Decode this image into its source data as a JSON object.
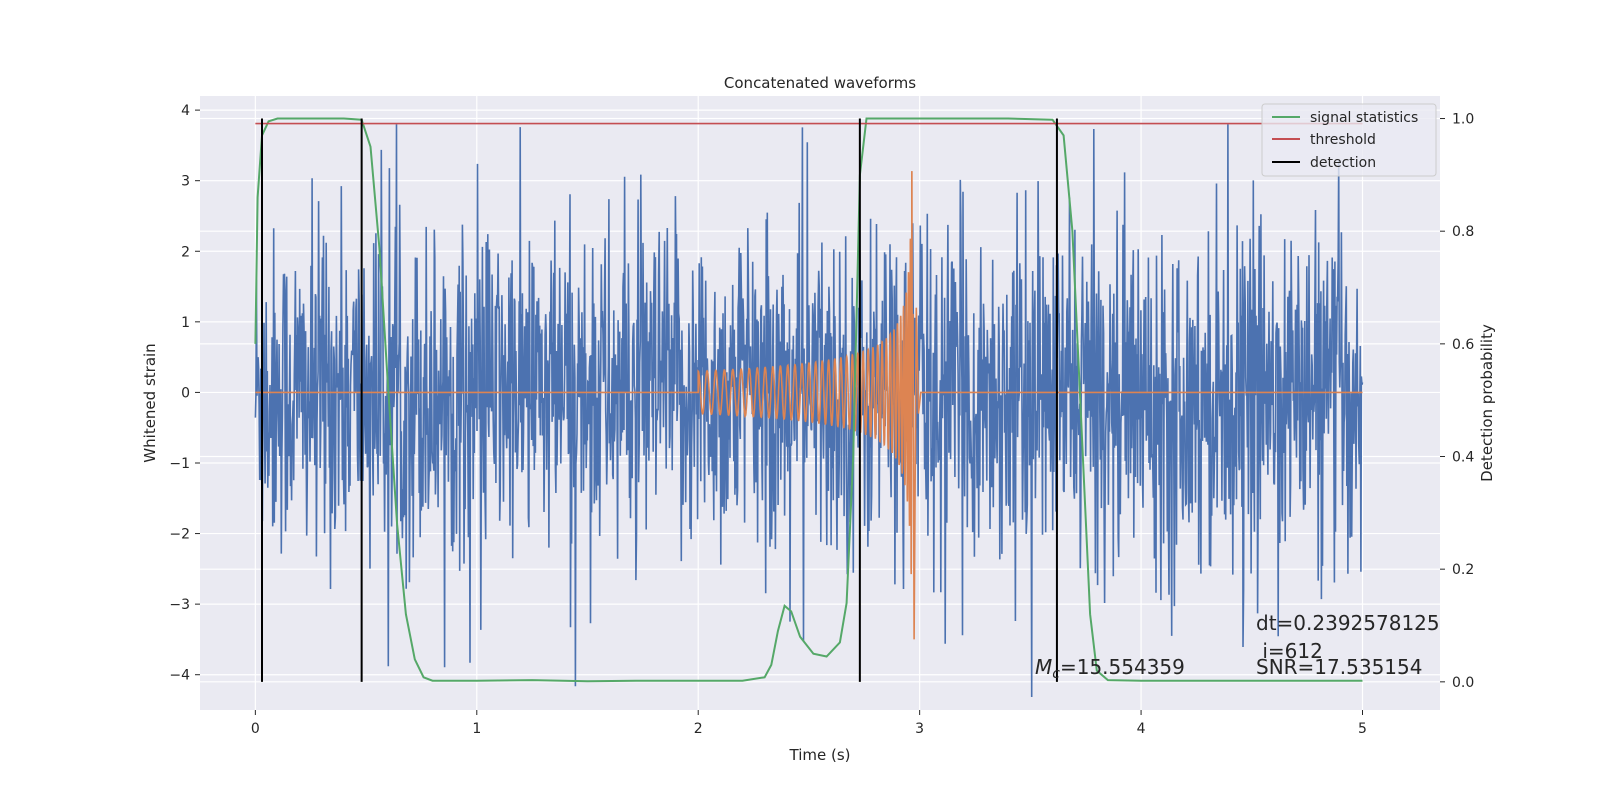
{
  "chart_data": {
    "type": "line",
    "title": "Concatenated waveforms",
    "xlabel": "Time (s)",
    "ylabel": "Whitened strain",
    "y2label": "Detection probability",
    "xlim": [
      -0.25,
      5.35
    ],
    "ylim": [
      -4.5,
      4.2
    ],
    "y2lim": [
      -0.05,
      1.04
    ],
    "xticks": [
      0,
      1,
      2,
      3,
      4,
      5
    ],
    "xtick_labels": [
      "0",
      "1",
      "2",
      "3",
      "4",
      "5"
    ],
    "yticks": [
      -4,
      -3,
      -2,
      -1,
      0,
      1,
      2,
      3,
      4
    ],
    "ytick_labels": [
      "−4",
      "−3",
      "−2",
      "−1",
      "0",
      "1",
      "2",
      "3",
      "4"
    ],
    "y2ticks": [
      0.0,
      0.2,
      0.4,
      0.6,
      0.8,
      1.0
    ],
    "y2tick_labels": [
      "0.0",
      "0.2",
      "0.4",
      "0.6",
      "0.8",
      "1.0"
    ],
    "grid": true,
    "legend_position": "top-right",
    "noise": {
      "x_range": [
        0,
        5
      ],
      "samples": 2048,
      "typical_amplitude": 1.4,
      "peak_min": -4.35,
      "peak_max": 3.8,
      "color": "#4c72b0"
    },
    "injected_signal": {
      "x_range": [
        2.0,
        3.0
      ],
      "start_amplitude": 0.3,
      "peak_time": 2.97,
      "peak_max": 3.3,
      "peak_min": -3.5,
      "value_elsewhere": 0,
      "color": "#dd8452"
    },
    "series": [
      {
        "name": "signal statistics",
        "axis": "right",
        "color": "#55a868",
        "x": [
          0.0,
          0.01,
          0.03,
          0.06,
          0.1,
          0.2,
          0.3,
          0.4,
          0.48,
          0.52,
          0.56,
          0.6,
          0.64,
          0.68,
          0.72,
          0.76,
          0.8,
          0.9,
          1.0,
          1.25,
          1.5,
          1.75,
          2.0,
          2.2,
          2.3,
          2.33,
          2.36,
          2.39,
          2.42,
          2.46,
          2.52,
          2.58,
          2.64,
          2.67,
          2.7,
          2.73,
          2.76,
          2.8,
          2.9,
          3.2,
          3.4,
          3.6,
          3.65,
          3.69,
          3.73,
          3.77,
          3.8,
          3.85,
          4.0,
          4.5,
          5.0
        ],
        "y": [
          0.6,
          0.86,
          0.97,
          0.995,
          1.0,
          1.0,
          1.0,
          1.0,
          0.998,
          0.95,
          0.77,
          0.52,
          0.28,
          0.12,
          0.04,
          0.008,
          0.002,
          0.002,
          0.002,
          0.003,
          0.001,
          0.002,
          0.002,
          0.002,
          0.008,
          0.03,
          0.09,
          0.135,
          0.125,
          0.08,
          0.05,
          0.045,
          0.07,
          0.14,
          0.4,
          0.9,
          1.0,
          1.0,
          1.0,
          1.0,
          1.0,
          0.998,
          0.97,
          0.8,
          0.46,
          0.12,
          0.02,
          0.003,
          0.002,
          0.002,
          0.002
        ]
      },
      {
        "name": "threshold",
        "axis": "right",
        "color": "#c44e52",
        "x": [
          0,
          5
        ],
        "y": [
          0.991,
          0.991
        ]
      },
      {
        "name": "detection",
        "axis": "right",
        "color": "#000000",
        "segments": [
          {
            "x": 0.03,
            "y": [
              0.0,
              1.0
            ]
          },
          {
            "x": 0.48,
            "y": [
              0.0,
              1.0
            ]
          },
          {
            "x": 2.73,
            "y": [
              0.0,
              1.0
            ]
          },
          {
            "x": 3.62,
            "y": [
              0.0,
              1.0
            ]
          }
        ]
      }
    ],
    "annotations": {
      "mc_prefix": "M",
      "mc_sub": "c",
      "mc_value": "=15.554359",
      "dt": "dt=0.2392578125",
      "i": " i=612",
      "snr": "SNR=17.535154"
    }
  }
}
